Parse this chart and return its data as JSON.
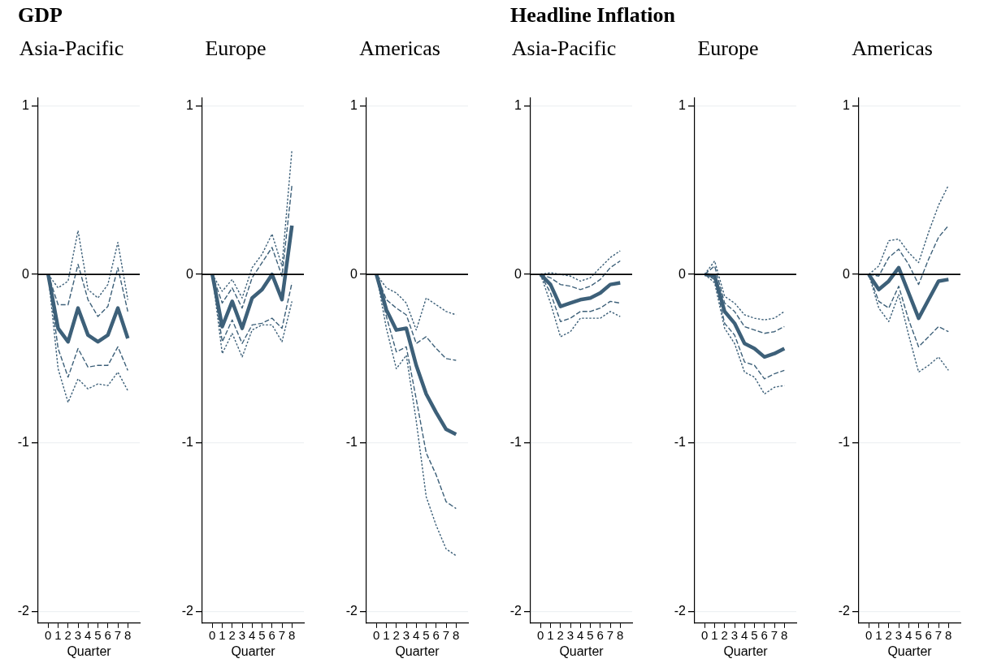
{
  "chart_data": [
    {
      "type": "line",
      "title": "Asia-Pacific",
      "annotations": [
        "GDP"
      ],
      "xlabel": "Quarter",
      "x": [
        0,
        1,
        2,
        3,
        4,
        5,
        6,
        7,
        8
      ],
      "xlim": [
        -1,
        9.2
      ],
      "xticks": [
        0,
        1,
        2,
        3,
        4,
        5,
        6,
        7,
        8
      ],
      "ylim": [
        -2.07,
        1.05
      ],
      "yticks": [
        -2,
        -1,
        0,
        1
      ],
      "grid": "y",
      "marker": "none",
      "ref_lines": [
        {
          "axis": "y",
          "value": 0,
          "color": "#000000"
        }
      ],
      "series": [
        {
          "color": "#3d6079",
          "line_style": "dotted",
          "values": [
            0,
            -0.08,
            -0.04,
            0.26,
            -0.09,
            -0.14,
            -0.06,
            0.19,
            -0.15
          ]
        },
        {
          "color": "#3d6079",
          "line_style": "dashed",
          "values": [
            0,
            -0.18,
            -0.18,
            0.06,
            -0.15,
            -0.25,
            -0.19,
            0.04,
            -0.22
          ]
        },
        {
          "color": "#3d6079",
          "line_style": "solid",
          "values": [
            0,
            -0.32,
            -0.4,
            -0.2,
            -0.36,
            -0.4,
            -0.36,
            -0.2,
            -0.38
          ]
        },
        {
          "color": "#3d6079",
          "line_style": "dashed",
          "values": [
            0,
            -0.44,
            -0.61,
            -0.44,
            -0.55,
            -0.54,
            -0.54,
            -0.43,
            -0.57
          ]
        },
        {
          "color": "#3d6079",
          "line_style": "dotted",
          "values": [
            0,
            -0.56,
            -0.76,
            -0.62,
            -0.68,
            -0.65,
            -0.66,
            -0.58,
            -0.69
          ]
        }
      ]
    },
    {
      "type": "line",
      "title": "Europe",
      "xlabel": "Quarter",
      "x": [
        0,
        1,
        2,
        3,
        4,
        5,
        6,
        7,
        8
      ],
      "xlim": [
        -1,
        9.2
      ],
      "xticks": [
        0,
        1,
        2,
        3,
        4,
        5,
        6,
        7,
        8
      ],
      "ylim": [
        -2.07,
        1.05
      ],
      "yticks": [
        -2,
        -1,
        0,
        1
      ],
      "grid": "y",
      "marker": "none",
      "ref_lines": [
        {
          "axis": "y",
          "value": 0,
          "color": "#000000"
        }
      ],
      "series": [
        {
          "color": "#3d6079",
          "line_style": "dotted",
          "values": [
            0,
            -0.1,
            -0.03,
            -0.14,
            0.04,
            0.12,
            0.24,
            0.05,
            0.74
          ]
        },
        {
          "color": "#3d6079",
          "line_style": "dashed",
          "values": [
            0,
            -0.17,
            -0.08,
            -0.2,
            -0.02,
            0.07,
            0.16,
            -0.01,
            0.53
          ]
        },
        {
          "color": "#3d6079",
          "line_style": "solid",
          "values": [
            0,
            -0.31,
            -0.16,
            -0.32,
            -0.14,
            -0.09,
            0,
            -0.15,
            0.29
          ]
        },
        {
          "color": "#3d6079",
          "line_style": "dashed",
          "values": [
            0,
            -0.4,
            -0.27,
            -0.41,
            -0.3,
            -0.29,
            -0.26,
            -0.32,
            -0.05
          ]
        },
        {
          "color": "#3d6079",
          "line_style": "dotted",
          "values": [
            0,
            -0.47,
            -0.35,
            -0.49,
            -0.33,
            -0.3,
            -0.3,
            -0.4,
            -0.16
          ]
        }
      ]
    },
    {
      "type": "line",
      "title": "Americas",
      "xlabel": "Quarter",
      "x": [
        0,
        1,
        2,
        3,
        4,
        5,
        6,
        7,
        8
      ],
      "xlim": [
        -1,
        9.2
      ],
      "xticks": [
        0,
        1,
        2,
        3,
        4,
        5,
        6,
        7,
        8
      ],
      "ylim": [
        -2.07,
        1.05
      ],
      "yticks": [
        -2,
        -1,
        0,
        1
      ],
      "grid": "y",
      "marker": "none",
      "ref_lines": [
        {
          "axis": "y",
          "value": 0,
          "color": "#000000"
        }
      ],
      "series": [
        {
          "color": "#3d6079",
          "line_style": "dotted",
          "values": [
            0,
            -0.08,
            -0.11,
            -0.17,
            -0.33,
            -0.14,
            -0.18,
            -0.22,
            -0.24
          ]
        },
        {
          "color": "#3d6079",
          "line_style": "dashed",
          "values": [
            0,
            -0.15,
            -0.2,
            -0.24,
            -0.41,
            -0.37,
            -0.44,
            -0.5,
            -0.51
          ]
        },
        {
          "color": "#3d6079",
          "line_style": "solid",
          "values": [
            0,
            -0.21,
            -0.33,
            -0.32,
            -0.54,
            -0.71,
            -0.82,
            -0.92,
            -0.95
          ]
        },
        {
          "color": "#3d6079",
          "line_style": "dashed",
          "values": [
            0,
            -0.25,
            -0.46,
            -0.43,
            -0.74,
            -1.06,
            -1.19,
            -1.35,
            -1.39
          ]
        },
        {
          "color": "#3d6079",
          "line_style": "dotted",
          "values": [
            0,
            -0.32,
            -0.56,
            -0.48,
            -0.87,
            -1.32,
            -1.49,
            -1.63,
            -1.67
          ]
        }
      ]
    },
    {
      "type": "line",
      "title": "Asia-Pacific",
      "annotations": [
        "Headline Inflation"
      ],
      "xlabel": "Quarter",
      "x": [
        0,
        1,
        2,
        3,
        4,
        5,
        6,
        7,
        8
      ],
      "xlim": [
        -1,
        9.2
      ],
      "xticks": [
        0,
        1,
        2,
        3,
        4,
        5,
        6,
        7,
        8
      ],
      "ylim": [
        -2.07,
        1.05
      ],
      "yticks": [
        -2,
        -1,
        0,
        1
      ],
      "grid": "y",
      "marker": "none",
      "ref_lines": [
        {
          "axis": "y",
          "value": 0,
          "color": "#000000"
        }
      ],
      "series": [
        {
          "color": "#3d6079",
          "line_style": "dotted",
          "values": [
            0,
            0.01,
            0,
            -0.01,
            -0.04,
            -0.02,
            0.04,
            0.1,
            0.14
          ]
        },
        {
          "color": "#3d6079",
          "line_style": "dashed",
          "values": [
            0,
            -0.02,
            -0.06,
            -0.07,
            -0.09,
            -0.07,
            -0.03,
            0.04,
            0.08
          ]
        },
        {
          "color": "#3d6079",
          "line_style": "solid",
          "values": [
            0,
            -0.06,
            -0.19,
            -0.17,
            -0.15,
            -0.14,
            -0.11,
            -0.06,
            -0.05
          ]
        },
        {
          "color": "#3d6079",
          "line_style": "dashed",
          "values": [
            0,
            -0.11,
            -0.28,
            -0.26,
            -0.22,
            -0.22,
            -0.2,
            -0.16,
            -0.17
          ]
        },
        {
          "color": "#3d6079",
          "line_style": "dotted",
          "values": [
            0,
            -0.17,
            -0.37,
            -0.34,
            -0.26,
            -0.26,
            -0.26,
            -0.22,
            -0.25
          ]
        }
      ]
    },
    {
      "type": "line",
      "title": "Europe",
      "xlabel": "Quarter",
      "x": [
        0,
        1,
        2,
        3,
        4,
        5,
        6,
        7,
        8
      ],
      "xlim": [
        -1,
        9.2
      ],
      "xticks": [
        0,
        1,
        2,
        3,
        4,
        5,
        6,
        7,
        8
      ],
      "ylim": [
        -2.07,
        1.05
      ],
      "yticks": [
        -2,
        -1,
        0,
        1
      ],
      "grid": "y",
      "marker": "none",
      "ref_lines": [
        {
          "axis": "y",
          "value": 0,
          "color": "#000000"
        }
      ],
      "series": [
        {
          "color": "#3d6079",
          "line_style": "dotted",
          "values": [
            0,
            0.08,
            -0.13,
            -0.17,
            -0.24,
            -0.26,
            -0.27,
            -0.26,
            -0.22
          ]
        },
        {
          "color": "#3d6079",
          "line_style": "dashed",
          "values": [
            0,
            0.05,
            -0.17,
            -0.22,
            -0.31,
            -0.33,
            -0.35,
            -0.34,
            -0.31
          ]
        },
        {
          "color": "#3d6079",
          "line_style": "solid",
          "values": [
            0,
            -0.01,
            -0.22,
            -0.29,
            -0.41,
            -0.44,
            -0.49,
            -0.47,
            -0.44
          ]
        },
        {
          "color": "#3d6079",
          "line_style": "dashed",
          "values": [
            0,
            -0.03,
            -0.29,
            -0.36,
            -0.52,
            -0.54,
            -0.62,
            -0.59,
            -0.57
          ]
        },
        {
          "color": "#3d6079",
          "line_style": "dotted",
          "values": [
            0,
            -0.05,
            -0.32,
            -0.41,
            -0.58,
            -0.61,
            -0.71,
            -0.67,
            -0.66
          ]
        }
      ]
    },
    {
      "type": "line",
      "title": "Americas",
      "xlabel": "Quarter",
      "x": [
        0,
        1,
        2,
        3,
        4,
        5,
        6,
        7,
        8
      ],
      "xlim": [
        -1,
        9.2
      ],
      "xticks": [
        0,
        1,
        2,
        3,
        4,
        5,
        6,
        7,
        8
      ],
      "ylim": [
        -2.07,
        1.05
      ],
      "yticks": [
        -2,
        -1,
        0,
        1
      ],
      "grid": "y",
      "marker": "none",
      "ref_lines": [
        {
          "axis": "y",
          "value": 0,
          "color": "#000000"
        }
      ],
      "series": [
        {
          "color": "#3d6079",
          "line_style": "dotted",
          "values": [
            0,
            0.05,
            0.2,
            0.21,
            0.13,
            0.07,
            0.25,
            0.41,
            0.53
          ]
        },
        {
          "color": "#3d6079",
          "line_style": "dashed",
          "values": [
            0,
            -0.01,
            0.1,
            0.15,
            0.06,
            -0.06,
            0.09,
            0.22,
            0.29
          ]
        },
        {
          "color": "#3d6079",
          "line_style": "solid",
          "values": [
            0,
            -0.09,
            -0.04,
            0.04,
            -0.11,
            -0.26,
            -0.15,
            -0.04,
            -0.03
          ]
        },
        {
          "color": "#3d6079",
          "line_style": "dashed",
          "values": [
            0,
            -0.16,
            -0.2,
            -0.07,
            -0.27,
            -0.43,
            -0.37,
            -0.31,
            -0.34
          ]
        },
        {
          "color": "#3d6079",
          "line_style": "dotted",
          "values": [
            0,
            -0.2,
            -0.28,
            -0.12,
            -0.36,
            -0.58,
            -0.54,
            -0.49,
            -0.57
          ]
        }
      ]
    }
  ]
}
